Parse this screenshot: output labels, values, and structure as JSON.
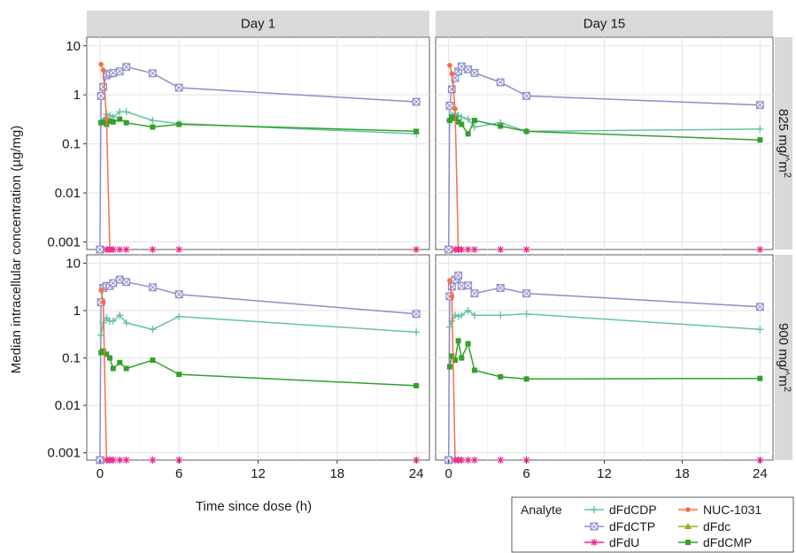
{
  "chart_data": {
    "type": "line",
    "xlabel": "Time since dose (h)",
    "ylabel": "Median intracellular concentration (µg/mg)",
    "x_ticks": [
      0,
      6,
      12,
      18,
      24
    ],
    "y_ticks": [
      {
        "value": 10,
        "label": "10"
      },
      {
        "value": 1,
        "label": "1"
      },
      {
        "value": 0.1,
        "label": "0.1"
      },
      {
        "value": 0.01,
        "label": "0.01"
      },
      {
        "value": 0.001,
        "label": "0.001"
      }
    ],
    "xlim": [
      -1,
      25
    ],
    "ylim": [
      0.0007,
      15
    ],
    "y_scale": "log",
    "grid": true,
    "col_facets": [
      "Day 1",
      "Day 15"
    ],
    "row_facets": [
      {
        "label": "825 mg/",
        "sup": "2",
        "mid": "m",
        "caret": "^"
      },
      {
        "label": "900 mg/",
        "sup": "2",
        "mid": "m",
        "caret": "^"
      }
    ],
    "legend": {
      "title": "Analyte",
      "position": "bottom-right",
      "entries": [
        {
          "name": "dFdCDP",
          "series": "dFdCDP"
        },
        {
          "name": "NUC-1031",
          "series": "NUC-1031"
        },
        {
          "name": "dFdCTP",
          "series": "dFdCTP"
        },
        {
          "name": "dFdc",
          "series": "dFdc"
        },
        {
          "name": "dFdU",
          "series": "dFdU"
        },
        {
          "name": "dFdCMP",
          "series": "dFdCMP"
        }
      ]
    },
    "series_styles": {
      "dFdCDP": {
        "color": "#66c2a5",
        "marker": "plus"
      },
      "NUC-1031": {
        "color": "#fc6d44",
        "marker": "circle"
      },
      "dFdCTP": {
        "color": "#8d8dcc",
        "marker": "square-x"
      },
      "dFdc": {
        "color": "#a6a61e",
        "marker": "triangle"
      },
      "dFdU": {
        "color": "#e7298a",
        "marker": "asterisk"
      },
      "dFdCMP": {
        "color": "#33a02c",
        "marker": "square"
      }
    },
    "panels": [
      {
        "col": "Day 1",
        "row": "825 mg/m2",
        "series": [
          {
            "name": "dFdCTP",
            "x": [
              0,
              0.083,
              0.25,
              0.5,
              0.75,
              1,
              1.5,
              2,
              4,
              6,
              24
            ],
            "y": [
              0.0007,
              0.95,
              1.45,
              2.5,
              2.7,
              2.8,
              3.0,
              3.7,
              2.75,
              1.4,
              0.72
            ]
          },
          {
            "name": "dFdCDP",
            "x": [
              0.083,
              0.25,
              0.5,
              0.75,
              1,
              1.5,
              2,
              4,
              6,
              24
            ],
            "y": [
              0.28,
              0.3,
              0.4,
              0.38,
              0.35,
              0.45,
              0.45,
              0.3,
              0.26,
              0.16
            ]
          },
          {
            "name": "dFdCMP",
            "x": [
              0.083,
              0.25,
              0.5,
              0.75,
              1,
              1.5,
              2,
              4,
              6,
              24
            ],
            "y": [
              0.27,
              0.28,
              0.25,
              0.29,
              0.28,
              0.32,
              0.27,
              0.22,
              0.25,
              0.18
            ]
          },
          {
            "name": "NUC-1031",
            "x": [
              0.083,
              0.25,
              0.5,
              0.75
            ],
            "y": [
              4.2,
              3.2,
              0.33,
              0.0007
            ]
          },
          {
            "name": "dFdU",
            "x": [
              0.5,
              0.75,
              1,
              1.5,
              2,
              4,
              6,
              24
            ],
            "y": [
              0.0007,
              0.0007,
              0.0007,
              0.0007,
              0.0007,
              0.0007,
              0.0007,
              0.0007
            ]
          }
        ]
      },
      {
        "col": "Day 15",
        "row": "825 mg/m2",
        "series": [
          {
            "name": "dFdCTP",
            "x": [
              0,
              0.083,
              0.25,
              0.5,
              0.75,
              1,
              1.5,
              2,
              4,
              6,
              24
            ],
            "y": [
              0.0007,
              0.6,
              1.3,
              2.2,
              3.0,
              3.8,
              3.3,
              2.8,
              1.8,
              0.95,
              0.62
            ]
          },
          {
            "name": "dFdCDP",
            "x": [
              0.083,
              0.25,
              0.5,
              0.75,
              1,
              1.5,
              2,
              4,
              6,
              24
            ],
            "y": [
              0.3,
              0.38,
              0.42,
              0.38,
              0.35,
              0.32,
              0.22,
              0.27,
              0.18,
              0.2
            ]
          },
          {
            "name": "dFdCMP",
            "x": [
              0.083,
              0.25,
              0.5,
              0.75,
              1,
              1.5,
              2,
              4,
              6,
              24
            ],
            "y": [
              0.3,
              0.35,
              0.33,
              0.28,
              0.25,
              0.16,
              0.3,
              0.23,
              0.18,
              0.12
            ]
          },
          {
            "name": "NUC-1031",
            "x": [
              0.083,
              0.25,
              0.5,
              0.75
            ],
            "y": [
              4.0,
              2.7,
              0.52,
              0.0007
            ]
          },
          {
            "name": "dFdU",
            "x": [
              0.5,
              0.75,
              1,
              1.5,
              2,
              4,
              6,
              24
            ],
            "y": [
              0.0007,
              0.0007,
              0.0007,
              0.0007,
              0.0007,
              0.0007,
              0.0007,
              0.0007
            ]
          }
        ]
      },
      {
        "col": "Day 1",
        "row": "900 mg/m2",
        "series": [
          {
            "name": "dFdCTP",
            "x": [
              0,
              0.083,
              0.25,
              0.5,
              0.75,
              1,
              1.5,
              2,
              4,
              6,
              24
            ],
            "y": [
              0.0007,
              1.5,
              3.0,
              3.3,
              3.3,
              3.8,
              4.5,
              4.0,
              3.1,
              2.2,
              0.85
            ]
          },
          {
            "name": "dFdCDP",
            "x": [
              0.083,
              0.25,
              0.5,
              0.75,
              1,
              1.5,
              2,
              4,
              6,
              24
            ],
            "y": [
              0.3,
              0.55,
              0.7,
              0.6,
              0.6,
              0.8,
              0.55,
              0.4,
              0.75,
              0.35
            ]
          },
          {
            "name": "dFdCMP",
            "x": [
              0.083,
              0.25,
              0.5,
              0.75,
              1,
              1.5,
              2,
              4,
              6,
              24
            ],
            "y": [
              0.13,
              0.14,
              0.12,
              0.1,
              0.06,
              0.08,
              0.06,
              0.09,
              0.045,
              0.026
            ]
          },
          {
            "name": "NUC-1031",
            "x": [
              0.083,
              0.25,
              0.5,
              0.75
            ],
            "y": [
              2.7,
              1.5,
              0.0007,
              0.0007
            ]
          },
          {
            "name": "dFdU",
            "x": [
              0.5,
              0.75,
              1,
              1.5,
              2,
              4,
              6,
              24
            ],
            "y": [
              0.0007,
              0.0007,
              0.0007,
              0.0007,
              0.0007,
              0.0007,
              0.0007,
              0.0007
            ]
          }
        ]
      },
      {
        "col": "Day 15",
        "row": "900 mg/m2",
        "series": [
          {
            "name": "dFdCTP",
            "x": [
              0,
              0.083,
              0.25,
              0.5,
              0.75,
              1,
              1.5,
              2,
              4,
              6,
              24
            ],
            "y": [
              0.0007,
              2.0,
              3.2,
              4.5,
              5.5,
              3.3,
              3.4,
              2.3,
              3.0,
              2.3,
              1.2
            ]
          },
          {
            "name": "dFdCDP",
            "x": [
              0.083,
              0.25,
              0.5,
              0.75,
              1,
              1.5,
              2,
              4,
              6,
              24
            ],
            "y": [
              0.45,
              0.6,
              0.8,
              0.75,
              0.8,
              1.0,
              0.8,
              0.8,
              0.85,
              0.4
            ]
          },
          {
            "name": "dFdCMP",
            "x": [
              0.083,
              0.25,
              0.5,
              0.75,
              1,
              1.5,
              2,
              4,
              6,
              24
            ],
            "y": [
              0.065,
              0.11,
              0.09,
              0.23,
              0.1,
              0.2,
              0.055,
              0.04,
              0.036,
              0.037
            ]
          },
          {
            "name": "NUC-1031",
            "x": [
              0.083,
              0.25,
              0.5,
              0.75
            ],
            "y": [
              4.3,
              2.0,
              0.0007,
              0.0007
            ]
          },
          {
            "name": "dFdU",
            "x": [
              0.5,
              0.75,
              1,
              1.5,
              2,
              4,
              6,
              24
            ],
            "y": [
              0.0007,
              0.0007,
              0.0007,
              0.0007,
              0.0007,
              0.0007,
              0.0007,
              0.0007
            ]
          }
        ]
      }
    ]
  }
}
